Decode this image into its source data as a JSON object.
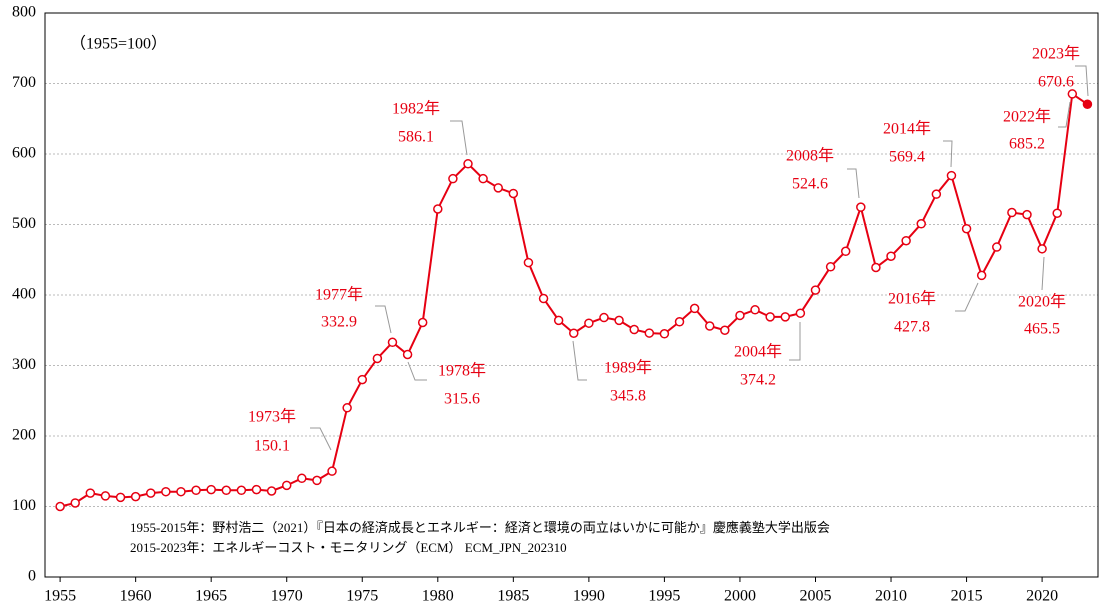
{
  "chart_data": {
    "type": "line",
    "subtitle": "（1955=100）",
    "notes": [
      "1955-2015年：野村浩二（2021）『日本の経済成長とエネルギー：経済と環境の両立はいかに可能か』慶應義塾大学出版会",
      "2015-2023年：エネルギーコスト・モニタリング（ECM） ECM_JPN_202310"
    ],
    "x": [
      1955,
      1956,
      1957,
      1958,
      1959,
      1960,
      1961,
      1962,
      1963,
      1964,
      1965,
      1966,
      1967,
      1968,
      1969,
      1970,
      1971,
      1972,
      1973,
      1974,
      1975,
      1976,
      1977,
      1978,
      1979,
      1980,
      1981,
      1982,
      1983,
      1984,
      1985,
      1986,
      1987,
      1988,
      1989,
      1990,
      1991,
      1992,
      1993,
      1994,
      1995,
      1996,
      1997,
      1998,
      1999,
      2000,
      2001,
      2002,
      2003,
      2004,
      2005,
      2006,
      2007,
      2008,
      2009,
      2010,
      2011,
      2012,
      2013,
      2014,
      2015,
      2016,
      2017,
      2018,
      2019,
      2020,
      2021,
      2022,
      2023
    ],
    "series": [
      {
        "color": "#e60012",
        "values": [
          100,
          105,
          119,
          115,
          113,
          114,
          119,
          121,
          121,
          123,
          124,
          123,
          123,
          124,
          122,
          130,
          140,
          137,
          150.1,
          240,
          280,
          310,
          332.9,
          315.6,
          361,
          522,
          565,
          586.1,
          565,
          552,
          544,
          446,
          395,
          364,
          345.8,
          360,
          368,
          364,
          351,
          346,
          345,
          362,
          381,
          356,
          350,
          371,
          379,
          369,
          369,
          374.2,
          407,
          440,
          462,
          524.6,
          439,
          455,
          477,
          501,
          543,
          569.4,
          494,
          427.8,
          468,
          517,
          514,
          465.5,
          516,
          685.2,
          670.6
        ],
        "annotation_labels": [
          null,
          null,
          null,
          null,
          null,
          null,
          null,
          null,
          null,
          null,
          null,
          null,
          null,
          null,
          null,
          null,
          null,
          null,
          "1973年",
          null,
          null,
          null,
          "1977年",
          "1978年",
          null,
          null,
          null,
          "1982年",
          null,
          null,
          null,
          null,
          null,
          null,
          "1989年",
          null,
          null,
          null,
          null,
          null,
          null,
          null,
          null,
          null,
          null,
          null,
          null,
          null,
          null,
          "2004年",
          null,
          null,
          null,
          "2008年",
          null,
          null,
          null,
          null,
          null,
          "2014年",
          null,
          "2016年",
          null,
          null,
          null,
          "2020年",
          null,
          "2022年",
          "2023年"
        ],
        "value_labels": [
          null,
          null,
          null,
          null,
          null,
          null,
          null,
          null,
          null,
          null,
          null,
          null,
          null,
          null,
          null,
          null,
          null,
          null,
          "150.1",
          null,
          null,
          null,
          "332.9",
          "315.6",
          null,
          null,
          null,
          "586.1",
          null,
          null,
          null,
          null,
          null,
          null,
          "345.8",
          null,
          null,
          null,
          null,
          null,
          null,
          null,
          null,
          null,
          null,
          null,
          null,
          null,
          null,
          "374.2",
          null,
          null,
          null,
          "524.6",
          null,
          null,
          null,
          null,
          null,
          "569.4",
          null,
          "427.8",
          null,
          null,
          null,
          "465.5",
          null,
          "685.2",
          "670.6"
        ]
      }
    ],
    "xlim": [
      1954,
      2023.7
    ],
    "xticks": [
      1955,
      1960,
      1965,
      1970,
      1975,
      1980,
      1985,
      1990,
      1995,
      2000,
      2005,
      2010,
      2015,
      2020
    ],
    "ylim": [
      0,
      800
    ],
    "yticks": [
      0,
      100,
      200,
      300,
      400,
      500,
      600,
      700,
      800
    ],
    "grid": true
  }
}
